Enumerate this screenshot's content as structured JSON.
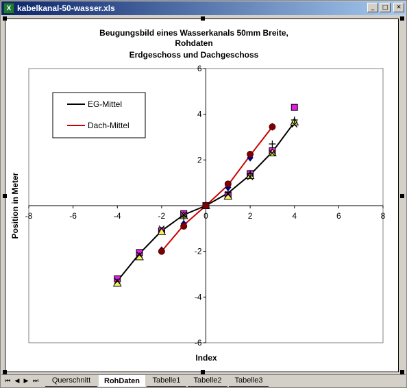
{
  "window": {
    "title": "kabelkanal-50-wasser.xls",
    "icon_label": "X",
    "minimize_glyph": "_",
    "restore_glyph": "□",
    "close_glyph": "✕"
  },
  "chart_data": {
    "type": "scatter",
    "title_lines": [
      "Beugungsbild eines Wasserkanals 50mm Breite,",
      "Rohdaten",
      "Erdgeschoss und Dachgeschoss"
    ],
    "xlabel": "Index",
    "ylabel": "Position in Meter",
    "xlim": [
      -8,
      8
    ],
    "ylim": [
      -6,
      6
    ],
    "x_ticks": [
      -8,
      -6,
      -4,
      -2,
      0,
      2,
      4,
      6,
      8
    ],
    "y_ticks": [
      -6,
      -4,
      -2,
      2,
      4,
      6
    ],
    "grid": false,
    "legend_position": "top-left",
    "series": [
      {
        "name": "EG-Mittel",
        "role": "line",
        "color": "#000000",
        "x": [
          -4,
          -3,
          -2,
          -1,
          0,
          1,
          2,
          3,
          4
        ],
        "y": [
          -3.3,
          -2.1,
          -1.1,
          -0.4,
          0,
          0.55,
          1.35,
          2.35,
          3.65
        ]
      },
      {
        "name": "Dach-Mittel",
        "role": "line",
        "color": "#cc0000",
        "x": [
          -2,
          -1,
          0,
          1,
          2,
          3
        ],
        "y": [
          -2.0,
          -0.85,
          0,
          0.9,
          2.2,
          3.45
        ]
      },
      {
        "role": "marker",
        "marker": "square",
        "color": "#e020e0",
        "x": [
          -4,
          -3,
          -2,
          -1,
          0,
          1,
          2,
          3,
          4
        ],
        "y": [
          -3.2,
          -2.05,
          -1.1,
          -0.35,
          0,
          0.45,
          1.4,
          2.4,
          4.3
        ]
      },
      {
        "role": "marker",
        "marker": "triangle",
        "color": "#f0f060",
        "x": [
          -4,
          -3,
          -2,
          -1,
          0,
          1,
          2,
          3,
          4
        ],
        "y": [
          -3.4,
          -2.25,
          -1.15,
          -0.45,
          0,
          0.4,
          1.3,
          2.3,
          3.65
        ]
      },
      {
        "role": "marker",
        "marker": "x",
        "color": "#000000",
        "x": [
          -4,
          -3,
          -2,
          -1,
          0,
          1,
          2,
          3,
          4
        ],
        "y": [
          -3.3,
          -2.15,
          -1.0,
          -0.4,
          0,
          0.5,
          1.25,
          2.3,
          3.55
        ]
      },
      {
        "role": "marker",
        "marker": "plus",
        "color": "#000000",
        "x": [
          -1,
          0,
          1,
          2,
          3,
          4
        ],
        "y": [
          -0.5,
          0,
          0.6,
          1.4,
          2.7,
          3.75
        ]
      },
      {
        "role": "marker",
        "marker": "diamond",
        "color": "#000080",
        "x": [
          -2,
          -1,
          0,
          1,
          2,
          3
        ],
        "y": [
          -1.95,
          -0.8,
          0,
          0.8,
          2.1,
          3.45
        ]
      },
      {
        "role": "marker",
        "marker": "circle",
        "color": "#800000",
        "x": [
          -2,
          -1,
          0,
          1,
          2,
          3
        ],
        "y": [
          -2.0,
          -0.9,
          0,
          0.95,
          2.25,
          3.45
        ]
      }
    ]
  },
  "tabs": {
    "nav": [
      "⏮",
      "◀",
      "▶",
      "⏭"
    ],
    "sheets": [
      {
        "label": "Querschnitt",
        "active": false
      },
      {
        "label": "RohDaten",
        "active": true
      },
      {
        "label": "Tabelle1",
        "active": false
      },
      {
        "label": "Tabelle2",
        "active": false
      },
      {
        "label": "Tabelle3",
        "active": false
      }
    ]
  }
}
